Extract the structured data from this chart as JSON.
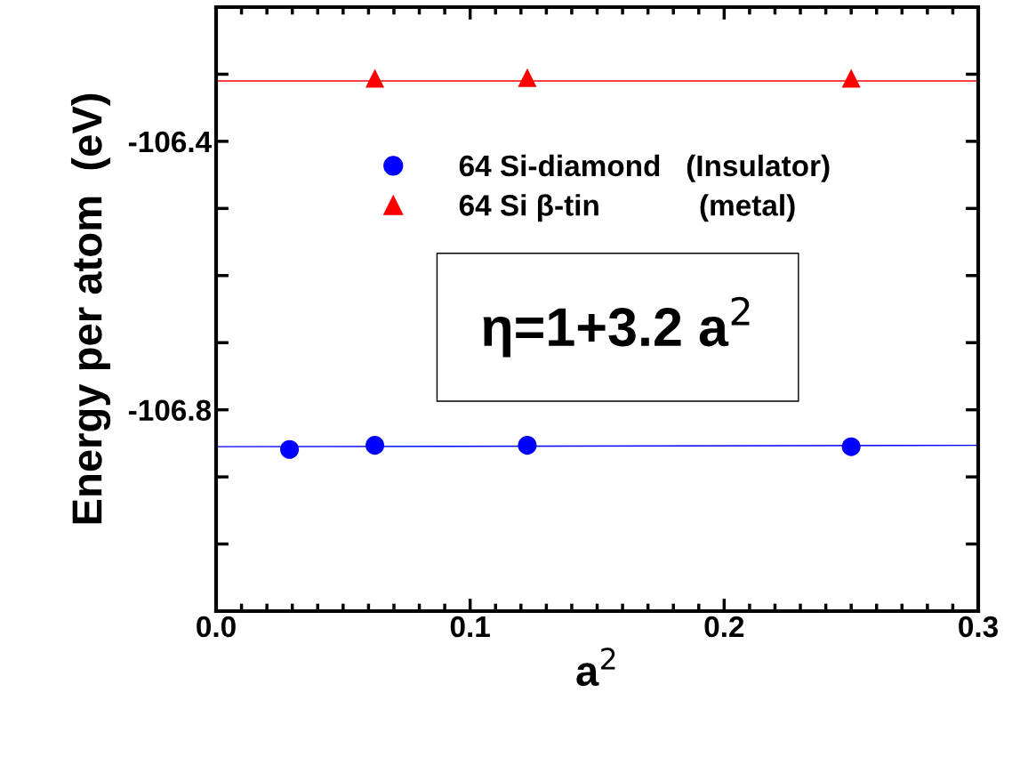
{
  "chart_data": {
    "type": "scatter",
    "xlabel": "a$^{2}$",
    "ylabel": "Energy per atom  (eV)",
    "xlim": [
      0,
      0.3
    ],
    "xticks": [
      {
        "value": 0,
        "label": "0.0"
      },
      0.1,
      0.2,
      0.3
    ],
    "ylim": [
      -107.1,
      -106.2
    ],
    "yticks": [
      {
        "value": -107.1,
        "label": null
      },
      {
        "value": -107.0,
        "label": null
      },
      {
        "value": -106.9,
        "label": null
      },
      -106.8,
      {
        "value": -106.7,
        "label": null
      },
      {
        "value": -106.6,
        "label": null
      },
      {
        "value": -106.5,
        "label": null
      },
      -106.4,
      {
        "value": -106.3,
        "label": null
      },
      {
        "value": -106.2,
        "label": null
      }
    ],
    "series": [
      {
        "name": "64 Si-diamond   (Insulator)",
        "color": "#0000ff",
        "marker": "circle",
        "x": [
          0.0289,
          0.0625,
          0.1225,
          0.25
        ],
        "values": [
          -106.859,
          -106.853,
          -106.853,
          -106.855
        ]
      },
      {
        "name": "64 Si β-tin            (metal)",
        "color": "#ff0000",
        "marker": "triangle",
        "x": [
          0.0625,
          0.1225,
          0.25
        ],
        "values": [
          -106.306,
          -106.305,
          -106.306
        ]
      },
      {
        "type": "line",
        "color": "#0000ff",
        "x": [
          0,
          0.3
        ],
        "values": [
          -106.855,
          -106.853
        ]
      },
      {
        "type": "line",
        "color": "#ff0000",
        "x": [
          0,
          0.3
        ],
        "values": [
          -106.31,
          -106.31
        ]
      }
    ],
    "annotations": [
      "η=1+3.2 a$^{2}$"
    ],
    "legend": "top",
    "grid": false
  }
}
